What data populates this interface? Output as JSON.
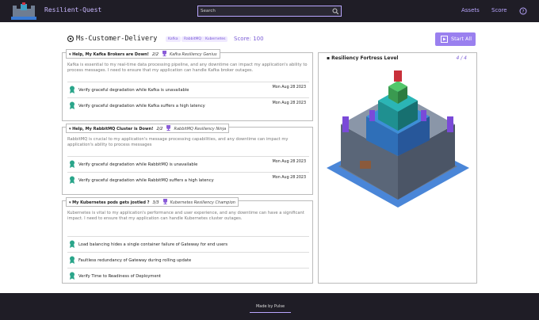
{
  "header": {
    "brand": "Resilient-Quest",
    "search_placeholder": "Search",
    "nav": [
      "Assets",
      "Score"
    ]
  },
  "title": "Ms-Customer-Delivery",
  "tags": [
    "Kafka",
    "RabbitMQ",
    "Kubernetes"
  ],
  "score": "Score: 100",
  "start_button": "Start All",
  "quests": [
    {
      "title": "Help, My Kafka Brokers are Down!",
      "progress": "2/2",
      "badge": "Kafka Resiliency Genius",
      "description": "Kafka is essential to my real-time data processing pipeline, and any downtime can impact my application's ability to process messages. I need to ensure that my application can handle Kafka broker outages.",
      "items": [
        {
          "label": "Verify graceful degradation while Kafka is unavailable",
          "date": "Mon Aug 28 2023"
        },
        {
          "label": "Verify graceful degradation while Kafka suffers a high latency",
          "date": "Mon Aug 28 2023"
        }
      ]
    },
    {
      "title": "Help, My RabbitMQ Cluster is Down!",
      "progress": "2/2",
      "badge": "RabbitMQ Resiliency Ninja",
      "description": "RabbitMQ is crucial to my application's message processing capabilities, and any downtime can impact my application's ability to process messages",
      "items": [
        {
          "label": "Verify graceful degradation while RabbitMQ is unavailable",
          "date": "Mon Aug 28 2023"
        },
        {
          "label": "Verify graceful degradation while RabbitMQ suffers a high latency",
          "date": "Mon Aug 28 2023"
        }
      ]
    },
    {
      "title": "My Kubernetes pods gets jostled ?",
      "progress": "3/3",
      "badge": "Kubernetes Resiliency Champion",
      "description": "Kubernetes is vital to my application's performance and user experience, and any downtime can have a significant impact. I need to ensure that my application can handle Kubernetes cluster outages.",
      "items": [
        {
          "label": "Load balancing hides a single container failure of Gateway for end users"
        },
        {
          "label": "Faultless redundancy of Gateway during rolling update"
        },
        {
          "label": "Verify Time to Readiness of Deployment"
        }
      ]
    }
  ],
  "fortress": {
    "title": "Resiliency Fortress Level",
    "level": "4 / 4"
  },
  "footer": {
    "credit": "Made by Pulse"
  }
}
